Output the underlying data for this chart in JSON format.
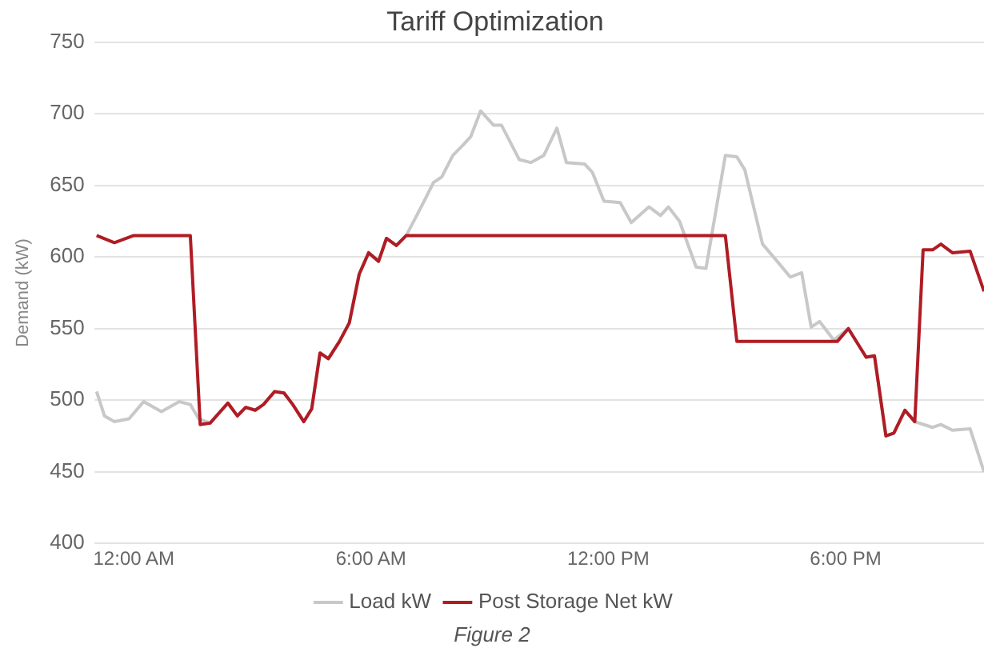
{
  "chart_data": {
    "type": "line",
    "title": "Tariff Optimization",
    "ylabel": "Demand (kW)",
    "xlim": [
      -1,
      21.5
    ],
    "xticks": [
      {
        "value": 0,
        "label": "12:00 AM"
      },
      {
        "value": 6,
        "label": "6:00 AM"
      },
      {
        "value": 12,
        "label": "12:00 PM"
      },
      {
        "value": 18,
        "label": "6:00 PM"
      }
    ],
    "ylim": [
      400,
      750
    ],
    "yticks": [
      400,
      450,
      500,
      550,
      600,
      650,
      700,
      750
    ],
    "grid": "y",
    "legend": "bottom",
    "marker": "none",
    "line_style": "solid",
    "series": [
      {
        "name": "Load kW",
        "color": "#c8c8c8",
        "x": [
          -0.94,
          -0.74,
          -0.49,
          -0.12,
          0.25,
          0.7,
          1.15,
          1.43,
          1.64,
          1.93,
          2.38,
          2.62,
          2.83,
          3.07,
          3.28,
          3.56,
          3.8,
          4.02,
          4.3,
          4.5,
          4.71,
          4.92,
          5.2,
          5.45,
          5.7,
          5.94,
          6.19,
          6.39,
          6.64,
          6.89,
          7.25,
          7.58,
          7.79,
          8.07,
          8.32,
          8.52,
          8.77,
          9.1,
          9.3,
          9.75,
          10.04,
          10.37,
          10.7,
          10.94,
          11.4,
          11.6,
          11.89,
          12.3,
          12.58,
          13.03,
          13.32,
          13.52,
          13.8,
          14.22,
          14.47,
          14.96,
          15.25,
          15.45,
          15.9,
          16.27,
          16.6,
          16.89,
          17.13,
          17.34,
          17.7,
          18.07,
          18.52,
          18.73,
          19.02,
          19.22,
          19.5,
          19.75,
          20.2,
          20.41,
          20.7,
          21.15,
          21.5
        ],
        "values": [
          506,
          489,
          485,
          487,
          499,
          492,
          499,
          497,
          487,
          484,
          498,
          489,
          495,
          493,
          497,
          506,
          505,
          497,
          485,
          494,
          533,
          529,
          541,
          554,
          588,
          603,
          597,
          613,
          608,
          615,
          634,
          652,
          656,
          671,
          678,
          684,
          702,
          692,
          692,
          668,
          666,
          671,
          690,
          666,
          665,
          659,
          639,
          638,
          624,
          635,
          629,
          635,
          625,
          593,
          592,
          671,
          670,
          661,
          609,
          597,
          586,
          589,
          551,
          555,
          542,
          550,
          530,
          531,
          475,
          477,
          493,
          485,
          481,
          483,
          479,
          480,
          450
        ]
      },
      {
        "name": "Post Storage Net kW",
        "color": "#b01c24",
        "x": [
          -0.94,
          -0.49,
          0,
          1.43,
          1.68,
          1.93,
          2.38,
          2.62,
          2.83,
          3.07,
          3.28,
          3.56,
          3.8,
          4.02,
          4.3,
          4.5,
          4.71,
          4.92,
          5.2,
          5.45,
          5.7,
          5.94,
          6.19,
          6.39,
          6.64,
          6.89,
          14.96,
          15.25,
          17.79,
          18.07,
          18.52,
          18.73,
          19.02,
          19.22,
          19.5,
          19.75,
          19.96,
          20.2,
          20.41,
          20.7,
          21.15,
          21.5
        ],
        "values": [
          615,
          610,
          615,
          615,
          483,
          484,
          498,
          489,
          495,
          493,
          497,
          506,
          505,
          497,
          485,
          494,
          533,
          529,
          541,
          554,
          588,
          603,
          597,
          613,
          608,
          615,
          615,
          541,
          541,
          550,
          530,
          531,
          475,
          477,
          493,
          485,
          605,
          605,
          609,
          603,
          604,
          576
        ]
      }
    ],
    "annotations": [
      "Figure 2"
    ]
  }
}
